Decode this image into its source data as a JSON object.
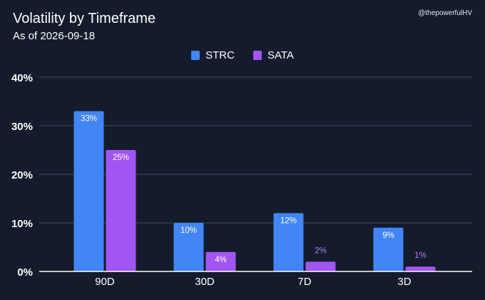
{
  "header": {
    "title": "Volatility by Timeframe",
    "subtitle": "As of 2026-09-18",
    "handle": "@thepowerfulHV"
  },
  "chart_data": {
    "type": "bar",
    "title": "Volatility by Timeframe",
    "subtitle": "As of 2026-09-18",
    "categories": [
      "90D",
      "30D",
      "7D",
      "3D"
    ],
    "series": [
      {
        "name": "STRC",
        "color": "#4285f4",
        "values": [
          33,
          10,
          12,
          9
        ],
        "labels": [
          "33%",
          "10%",
          "12%",
          "9%"
        ]
      },
      {
        "name": "SATA",
        "color": "#a155f2",
        "values": [
          25,
          4,
          2,
          1
        ],
        "labels": [
          "25%",
          "4%",
          "2%",
          "1%"
        ]
      }
    ],
    "ylim": [
      0,
      40
    ],
    "yticks": [
      0,
      10,
      20,
      30,
      40
    ],
    "ytick_labels": [
      "0%",
      "10%",
      "20%",
      "30%",
      "40%"
    ],
    "xlabel": "",
    "ylabel": "",
    "legend": "top-center",
    "grid": true
  },
  "colors": {
    "background": "#141c2b",
    "grid": "#3a4a5c",
    "text": "#ffffff",
    "small_value_label": "#b57cf6"
  }
}
